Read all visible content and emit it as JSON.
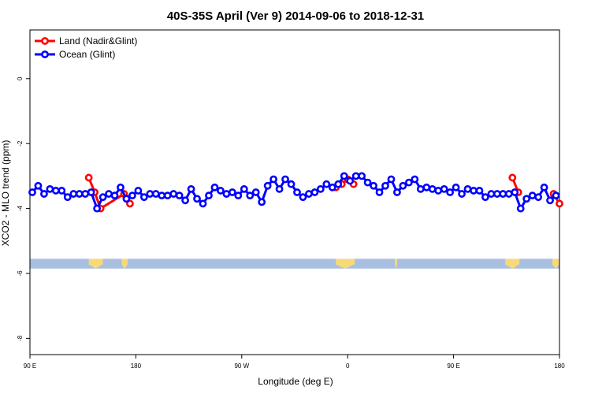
{
  "chart_data": {
    "type": "line",
    "title": "40S-35S April (Ver 9)   2014-09-06 to 2018-12-31",
    "xlabel": "Longitude (deg E)",
    "ylabel": "XCO2 - MLO trend (ppm)",
    "x_tick_labels": [
      "90 E",
      "180",
      "90 W",
      "0",
      "90 E",
      "180"
    ],
    "x_ticks": [
      90,
      180,
      270,
      360,
      450,
      540
    ],
    "xlim": [
      90,
      540
    ],
    "y_ticks": [
      0,
      -2,
      -4,
      -6,
      -8
    ],
    "y_tick_labels": [
      "0",
      "-2",
      "-4",
      "-6",
      "-8"
    ],
    "ylim": [
      -8.5,
      1.5
    ],
    "grid": false,
    "legend_position": "top-left",
    "land_band": {
      "y_top": -5.55,
      "y_bottom": -5.85,
      "color": "#a9bfe0",
      "land_color": "#f7d97a"
    },
    "land_patches_x": [
      [
        140,
        152
      ],
      [
        168,
        173
      ],
      [
        350,
        366
      ],
      [
        400,
        402
      ],
      [
        494,
        506
      ],
      [
        534,
        540
      ]
    ],
    "series": [
      {
        "name": "Land (Nadir&Glint)",
        "color": "#ff0000",
        "segments": [
          [
            [
              140,
              -3.05
            ],
            [
              145,
              -3.5
            ],
            [
              150,
              -4.0
            ],
            [
              170,
              -3.55
            ],
            [
              175,
              -3.85
            ]
          ],
          [
            [
              350,
              -3.35
            ],
            [
              355,
              -3.25
            ],
            [
              360,
              -3.1
            ],
            [
              365,
              -3.25
            ]
          ],
          [
            [
              500,
              -3.05
            ],
            [
              505,
              -3.5
            ]
          ],
          [
            [
              535,
              -3.55
            ],
            [
              540,
              -3.85
            ]
          ]
        ]
      },
      {
        "name": "Ocean (Glint)",
        "color": "#0000ff",
        "points": [
          [
            92,
            -3.5
          ],
          [
            97,
            -3.3
          ],
          [
            102,
            -3.55
          ],
          [
            107,
            -3.4
          ],
          [
            112,
            -3.45
          ],
          [
            117,
            -3.45
          ],
          [
            122,
            -3.65
          ],
          [
            127,
            -3.55
          ],
          [
            132,
            -3.55
          ],
          [
            137,
            -3.55
          ],
          [
            142,
            -3.5
          ],
          [
            147,
            -4.0
          ],
          [
            152,
            -3.65
          ],
          [
            157,
            -3.55
          ],
          [
            162,
            -3.6
          ],
          [
            167,
            -3.35
          ],
          [
            172,
            -3.7
          ],
          [
            177,
            -3.6
          ],
          [
            182,
            -3.45
          ],
          [
            187,
            -3.65
          ],
          [
            192,
            -3.55
          ],
          [
            197,
            -3.55
          ],
          [
            202,
            -3.6
          ],
          [
            207,
            -3.6
          ],
          [
            212,
            -3.55
          ],
          [
            217,
            -3.6
          ],
          [
            222,
            -3.75
          ],
          [
            227,
            -3.4
          ],
          [
            232,
            -3.7
          ],
          [
            237,
            -3.85
          ],
          [
            242,
            -3.6
          ],
          [
            247,
            -3.35
          ],
          [
            252,
            -3.45
          ],
          [
            257,
            -3.55
          ],
          [
            262,
            -3.5
          ],
          [
            267,
            -3.6
          ],
          [
            272,
            -3.4
          ],
          [
            277,
            -3.6
          ],
          [
            282,
            -3.5
          ],
          [
            287,
            -3.8
          ],
          [
            292,
            -3.3
          ],
          [
            297,
            -3.1
          ],
          [
            302,
            -3.4
          ],
          [
            307,
            -3.1
          ],
          [
            312,
            -3.25
          ],
          [
            317,
            -3.5
          ],
          [
            322,
            -3.65
          ],
          [
            327,
            -3.55
          ],
          [
            332,
            -3.5
          ],
          [
            337,
            -3.4
          ],
          [
            342,
            -3.25
          ],
          [
            347,
            -3.35
          ],
          [
            352,
            -3.25
          ],
          [
            357,
            -3.0
          ],
          [
            362,
            -3.15
          ],
          [
            367,
            -3.0
          ],
          [
            372,
            -3.0
          ],
          [
            377,
            -3.2
          ],
          [
            382,
            -3.3
          ],
          [
            387,
            -3.5
          ],
          [
            392,
            -3.3
          ],
          [
            397,
            -3.1
          ],
          [
            402,
            -3.5
          ],
          [
            407,
            -3.3
          ],
          [
            412,
            -3.2
          ],
          [
            417,
            -3.1
          ],
          [
            422,
            -3.4
          ],
          [
            427,
            -3.35
          ],
          [
            432,
            -3.4
          ],
          [
            437,
            -3.45
          ],
          [
            442,
            -3.4
          ],
          [
            447,
            -3.5
          ],
          [
            452,
            -3.35
          ],
          [
            457,
            -3.55
          ],
          [
            462,
            -3.4
          ],
          [
            467,
            -3.45
          ],
          [
            472,
            -3.45
          ],
          [
            477,
            -3.65
          ],
          [
            482,
            -3.55
          ],
          [
            487,
            -3.55
          ],
          [
            492,
            -3.55
          ],
          [
            497,
            -3.55
          ],
          [
            502,
            -3.5
          ],
          [
            507,
            -4.0
          ],
          [
            512,
            -3.7
          ],
          [
            517,
            -3.6
          ],
          [
            522,
            -3.65
          ],
          [
            527,
            -3.35
          ],
          [
            532,
            -3.75
          ],
          [
            537,
            -3.6
          ]
        ]
      }
    ]
  }
}
